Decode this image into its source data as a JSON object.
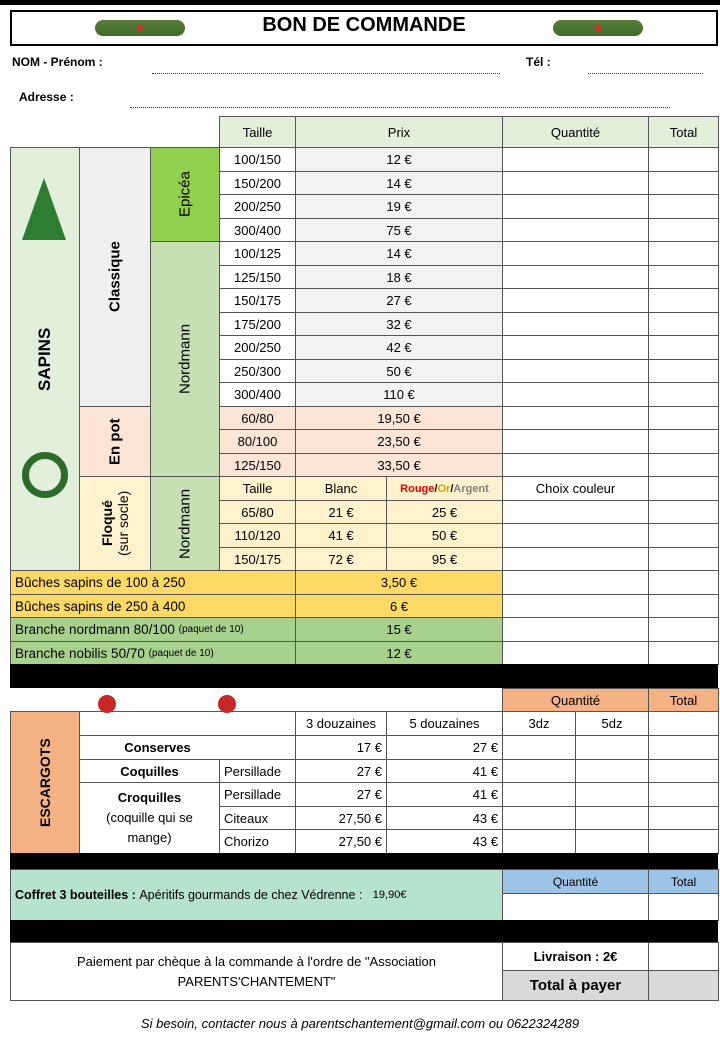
{
  "title": "BON DE COMMANDE",
  "form": {
    "name_label": "NOM - Prénom :",
    "phone_label": "Tél :",
    "address_label": "Adresse :"
  },
  "sapins": {
    "label": "SAPINS",
    "classique": "Classique",
    "epicea": "Epicéa",
    "nordmann": "Nordmann",
    "en_pot": "En pot",
    "flocke": "Floqué",
    "flocke_sub": "(sur socle)",
    "flocke_species": "Nordmann",
    "headers": {
      "taille": "Taille",
      "prix": "Prix",
      "quantite": "Quantité",
      "total": "Total"
    },
    "rows": [
      {
        "size": "100/150",
        "price": "12 €"
      },
      {
        "size": "150/200",
        "price": "14 €"
      },
      {
        "size": "200/250",
        "price": "19 €"
      },
      {
        "size": "300/400",
        "price": "75 €"
      },
      {
        "size": "100/125",
        "price": "14 €"
      },
      {
        "size": "125/150",
        "price": "18 €"
      },
      {
        "size": "150/175",
        "price": "27 €"
      },
      {
        "size": "175/200",
        "price": "32 €"
      },
      {
        "size": "200/250",
        "price": "42 €"
      },
      {
        "size": "250/300",
        "price": "50 €"
      },
      {
        "size": "300/400",
        "price": "110 €"
      },
      {
        "size": "60/80",
        "price": "19,50 €"
      },
      {
        "size": "80/100",
        "price": "23,50 €"
      },
      {
        "size": "125/150",
        "price": "33,50 €"
      }
    ],
    "flocke_headers": {
      "taille": "Taille",
      "blanc": "Blanc",
      "rouge": "Rouge",
      "or": "Or",
      "argent": "Argent",
      "sep": "/",
      "choix": "Choix couleur"
    },
    "flocke_rows": [
      {
        "size": "65/80",
        "blanc": "21 €",
        "couleur": "25 €"
      },
      {
        "size": "110/120",
        "blanc": "41 €",
        "couleur": "50 €"
      },
      {
        "size": "150/175",
        "blanc": "72 €",
        "couleur": "95 €"
      }
    ]
  },
  "extras": [
    {
      "label": "Bûches sapins de 100 à 250",
      "note": "",
      "price": "3,50 €"
    },
    {
      "label": "Bûches sapins de 250 à 400",
      "note": "",
      "price": "6 €"
    },
    {
      "label": "Branche nordmann 80/100",
      "note": "(paquet de 10)",
      "price": "15 €"
    },
    {
      "label": "Branche nobilis 50/70",
      "note": "(paquet de 10)",
      "price": "12 €"
    }
  ],
  "escargots": {
    "label": "ESCARGOTS",
    "quantite": "Quantité",
    "total": "Total",
    "h3": "3 douzaines",
    "h5": "5 douzaines",
    "q3": "3dz",
    "q5": "5dz",
    "conserves": "Conserves",
    "coquilles": "Coquilles",
    "croquilles": "Croquilles",
    "croquilles_note": "(coquille qui se mange)",
    "rows": [
      {
        "variant": "",
        "p3": "17 €",
        "p5": "27 €"
      },
      {
        "variant": "Persillade",
        "p3": "27 €",
        "p5": "41 €"
      },
      {
        "variant": "Persillade",
        "p3": "27 €",
        "p5": "41 €"
      },
      {
        "variant": "Citeaux",
        "p3": "27,50 €",
        "p5": "43 €"
      },
      {
        "variant": "Chorizo",
        "p3": "27,50 €",
        "p5": "43 €"
      }
    ]
  },
  "coffret": {
    "label": "Coffret 3 bouteilles :",
    "desc": "Apéritifs gourmands de chez Védrenne :",
    "price": "19,90€",
    "quantite": "Quantité",
    "total": "Total"
  },
  "payment": {
    "text": "Paiement par chèque à la commande à l'ordre de \"Association PARENTS'CHANTEMENT\"",
    "livraison": "Livraison  : 2€",
    "total": "Total à payer"
  },
  "footer": "Si besoin, contacter nous à parentschantement@gmail.com ou 0622324289",
  "colors": {
    "header": "#e2efda",
    "sapins": "#e2efda",
    "classique": "#efefef",
    "epicea": "#92d050",
    "nordmann": "#c6e0b4",
    "pot": "#fce4d6",
    "flocke": "#fff2cc",
    "buches": "#ffd966",
    "branches": "#a9d18e",
    "escargots": "#f4b183",
    "coffret": "#b5e3cd",
    "coffret_q": "#9dc3e6"
  }
}
